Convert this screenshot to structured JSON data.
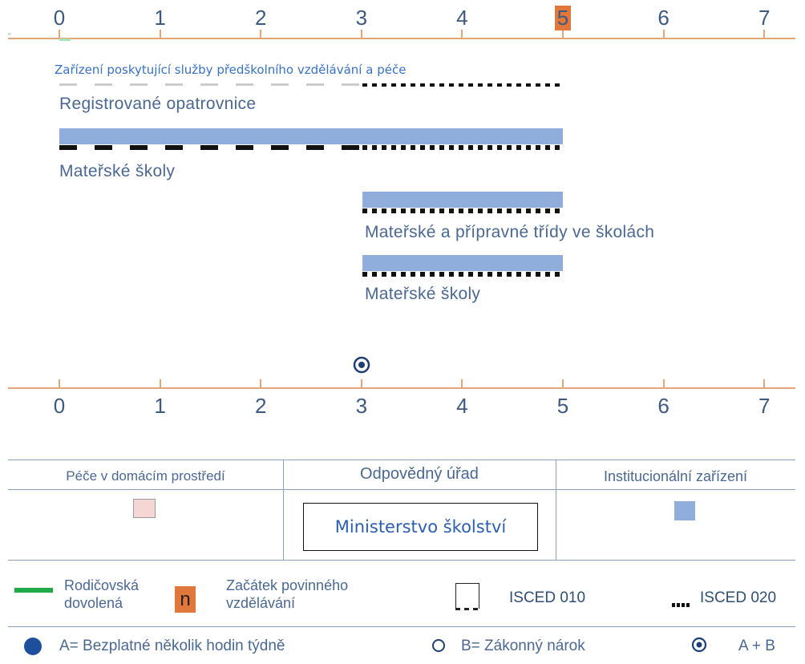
{
  "axis": {
    "ticks": [
      "0",
      "1",
      "2",
      "3",
      "4",
      "5",
      "6",
      "7"
    ],
    "highlight_tick": "5"
  },
  "corner_mark": "\"",
  "section_title": "Zařízení poskytující služby předškolního vzdělávání a péče",
  "programmes": [
    {
      "label": "Registrované opatrovnice",
      "from": 0,
      "to": 5,
      "bar": false,
      "isced010_from": 0,
      "isced010_to": 3,
      "isced020_from": 3,
      "isced020_to": 5
    },
    {
      "label": "Mateřské školy",
      "from": 0,
      "to": 5,
      "bar": true,
      "isced010_from": 0,
      "isced010_to": 3,
      "isced020_from": 3,
      "isced020_to": 5
    },
    {
      "label": "Mateřské a přípravné třídy ve školách",
      "from": 3,
      "to": 5,
      "bar": true,
      "isced020_from": 3,
      "isced020_to": 5
    },
    {
      "label": "Mateřské školy",
      "from": 3,
      "to": 5,
      "bar": true,
      "isced020_from": 3,
      "isced020_to": 5
    }
  ],
  "entitlement_marker": {
    "age": 3,
    "type": "A + B"
  },
  "table": {
    "col_home": "Péče v domácím prostředí",
    "col_authority": "Odpovědný úřad",
    "col_institution": "Institucionální zařízení",
    "authority_value": "Ministerstvo školství",
    "home_color": "#f6d5d5",
    "institution_color": "#8faedb"
  },
  "legend": {
    "parental_leave": "Rodičovská\ndovolená",
    "compulsory_start_symbol": "n",
    "compulsory_start": "Začátek povinného\nvzdělávání",
    "isced010": "ISCED 010",
    "isced020": "ISCED 020",
    "free_hours": "A= Bezplatné několik hodin týdně",
    "legal_right": "B= Zákonný nárok",
    "combined": "A + B"
  },
  "colors": {
    "axis": "#e3a57a",
    "bar": "#8faedb",
    "highlight": "#e2773c",
    "parental_leave": "#1faa4a",
    "dot": "#1e4f9c"
  }
}
